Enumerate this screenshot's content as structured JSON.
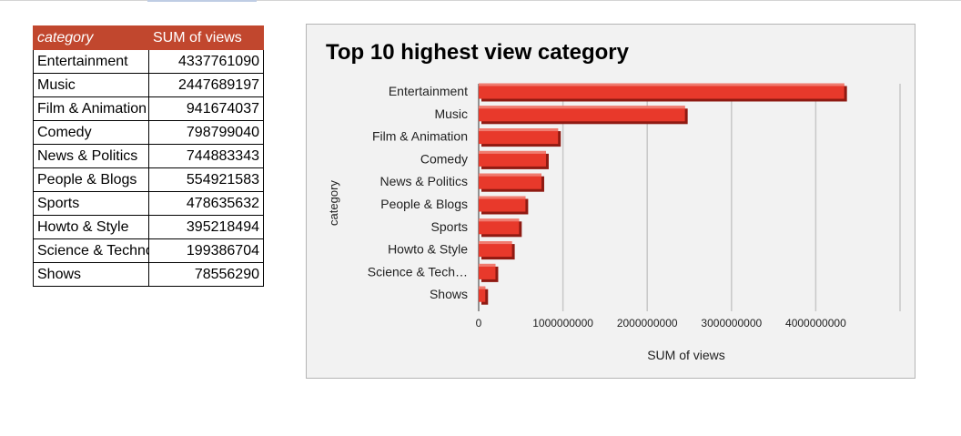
{
  "table": {
    "headers": [
      "category",
      "SUM of views"
    ],
    "rows": [
      {
        "category": "Entertainment",
        "views": "4337761090"
      },
      {
        "category": "Music",
        "views": "2447689197"
      },
      {
        "category": "Film & Animation",
        "views": "941674037"
      },
      {
        "category": "Comedy",
        "views": "798799040"
      },
      {
        "category": "News & Politics",
        "views": "744883343"
      },
      {
        "category": "People & Blogs",
        "views": "554921583"
      },
      {
        "category": "Sports",
        "views": "478635632"
      },
      {
        "category": "Howto & Style",
        "views": "395218494"
      },
      {
        "category": "Science & Technology",
        "views": "199386704"
      },
      {
        "category": "Shows",
        "views": "78556290"
      }
    ]
  },
  "chart_data": {
    "type": "bar",
    "orientation": "horizontal",
    "title": "Top 10 highest view category",
    "xlabel": "SUM of views",
    "ylabel": "category",
    "categories": [
      "Entertainment",
      "Music",
      "Film & Animation",
      "Comedy",
      "News & Politics",
      "People & Blogs",
      "Sports",
      "Howto & Style",
      "Science & Tech…",
      "Shows"
    ],
    "values": [
      4337761090,
      2447689197,
      941674037,
      798799040,
      744883343,
      554921583,
      478635632,
      395218494,
      199386704,
      78556290
    ],
    "xlim": [
      0,
      5000000000
    ],
    "xticks": [
      0,
      1000000000,
      2000000000,
      3000000000,
      4000000000
    ],
    "xtick_labels": [
      "0",
      "1000000000",
      "2000000000",
      "3000000000",
      "4000000000"
    ],
    "grid": true,
    "legend": "none",
    "bar_color": "#e8392b",
    "bar_style": "3d"
  }
}
